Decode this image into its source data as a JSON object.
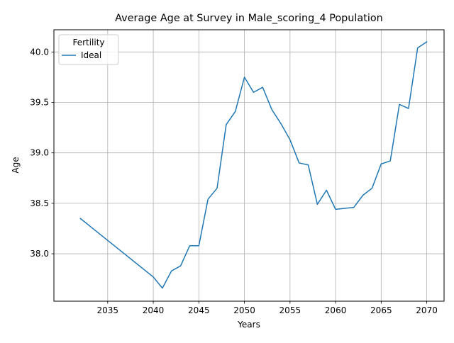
{
  "chart_data": {
    "type": "line",
    "title": "Average Age at Survey in Male_scoring_4 Population",
    "xlabel": "Years",
    "ylabel": "Age",
    "xlim": [
      2029.1,
      2071.9
    ],
    "ylim": [
      37.53,
      40.22
    ],
    "xticks": [
      2035,
      2040,
      2045,
      2050,
      2055,
      2060,
      2065,
      2070
    ],
    "yticks": [
      38.0,
      38.5,
      39.0,
      39.5,
      40.0
    ],
    "ytick_labels": [
      "38.0",
      "38.5",
      "39.0",
      "39.5",
      "40.0"
    ],
    "grid": true,
    "legend": {
      "title": "Fertility",
      "position": "top-left"
    },
    "series": [
      {
        "name": "Ideal",
        "color": "#1f77b4",
        "x": [
          2032,
          2040,
          2041,
          2042,
          2043,
          2044,
          2045,
          2046,
          2047,
          2048,
          2049,
          2050,
          2051,
          2052,
          2053,
          2054,
          2055,
          2056,
          2057,
          2058,
          2059,
          2060,
          2061,
          2062,
          2063,
          2064,
          2065,
          2066,
          2067,
          2068,
          2069,
          2070
        ],
        "y": [
          38.35,
          37.77,
          37.66,
          37.83,
          37.88,
          38.08,
          38.08,
          38.54,
          38.65,
          39.28,
          39.41,
          39.75,
          39.6,
          39.65,
          39.43,
          39.29,
          39.13,
          38.9,
          38.88,
          38.49,
          38.63,
          38.44,
          38.45,
          38.46,
          38.58,
          38.65,
          38.89,
          38.92,
          39.48,
          39.44,
          40.04,
          40.1
        ]
      }
    ]
  }
}
